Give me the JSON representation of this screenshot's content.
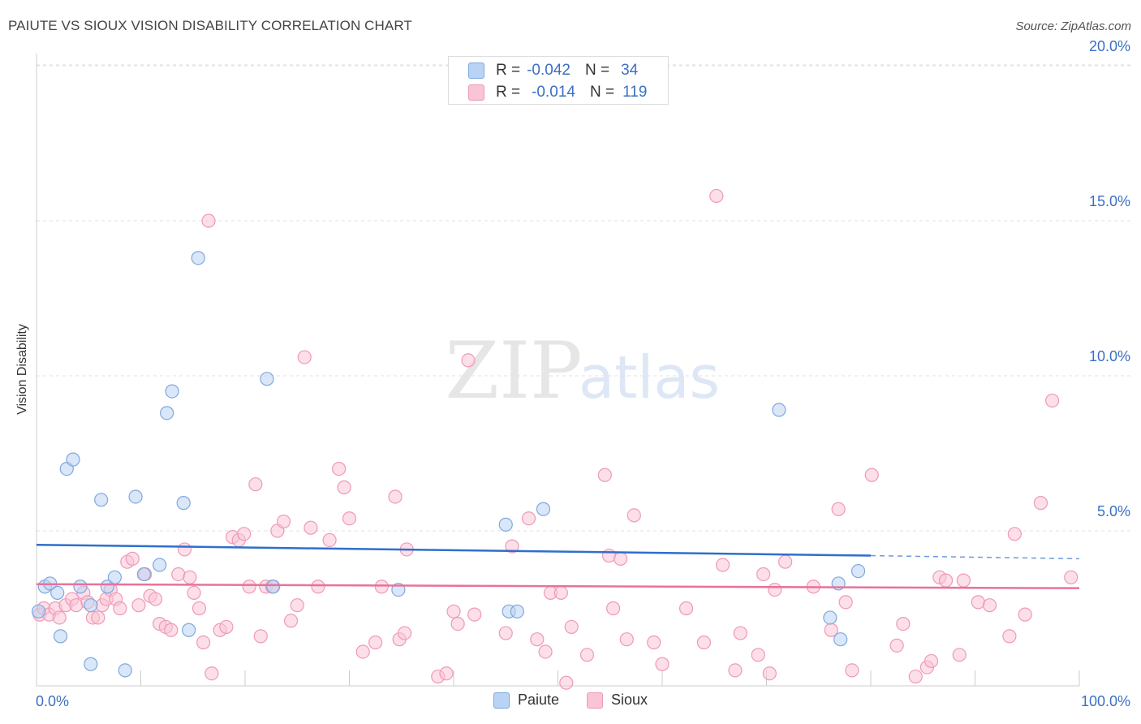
{
  "title": "PAIUTE VS SIOUX VISION DISABILITY CORRELATION CHART",
  "source": "Source: ZipAtlas.com",
  "watermark": {
    "zip": "ZIP",
    "atlas": "atlas"
  },
  "legend": {
    "rows": [
      {
        "r_label": "R =",
        "r_value": "-0.042",
        "n_label": "N =",
        "n_value": "34"
      },
      {
        "r_label": "R =",
        "r_value": "-0.014",
        "n_label": "N =",
        "n_value": "119"
      }
    ]
  },
  "colors": {
    "paiute_fill": "#b9d3f4",
    "paiute_stroke": "#7fa8dc",
    "paiute_line": "#2e6fcc",
    "sioux_fill": "#f9c4d5",
    "sioux_stroke": "#ee9ab5",
    "sioux_line": "#e8729b",
    "tick_label": "#3b6fc4",
    "grid": "#e2e2e2"
  },
  "chart_data": {
    "type": "scatter",
    "title": "PAIUTE VS SIOUX VISION DISABILITY CORRELATION CHART",
    "xlabel": "",
    "ylabel": "Vision Disability",
    "xlim": [
      0,
      100
    ],
    "ylim": [
      0,
      20.5
    ],
    "x_tick_labels": [
      "0.0%",
      "100.0%"
    ],
    "y_ticks": [
      5,
      10,
      15,
      20
    ],
    "y_tick_labels": [
      "5.0%",
      "10.0%",
      "15.0%",
      "20.0%"
    ],
    "grid": "horizontal dashed",
    "legend_placement": "top-center and bottom",
    "series": [
      {
        "name": "Paiute",
        "r": -0.042,
        "n": 34,
        "trend": {
          "x0": 0,
          "y0": 4.55,
          "x1": 80,
          "y1": 4.2,
          "dashed_to_x": 100,
          "dashed_to_y": 4.1
        },
        "points": [
          [
            0.2,
            2.4
          ],
          [
            0.8,
            3.2
          ],
          [
            1.3,
            3.3
          ],
          [
            2.0,
            3.0
          ],
          [
            2.3,
            1.6
          ],
          [
            2.9,
            7.0
          ],
          [
            3.5,
            7.3
          ],
          [
            4.2,
            3.2
          ],
          [
            5.2,
            0.7
          ],
          [
            5.2,
            2.6
          ],
          [
            6.2,
            6.0
          ],
          [
            6.8,
            3.2
          ],
          [
            7.5,
            3.5
          ],
          [
            8.5,
            0.5
          ],
          [
            9.5,
            6.1
          ],
          [
            10.3,
            3.6
          ],
          [
            11.8,
            3.9
          ],
          [
            12.5,
            8.8
          ],
          [
            13.0,
            9.5
          ],
          [
            14.1,
            5.9
          ],
          [
            14.6,
            1.8
          ],
          [
            15.5,
            13.8
          ],
          [
            22.1,
            9.9
          ],
          [
            22.7,
            3.2
          ],
          [
            34.7,
            3.1
          ],
          [
            45.0,
            5.2
          ],
          [
            45.3,
            2.4
          ],
          [
            46.1,
            2.4
          ],
          [
            48.6,
            5.7
          ],
          [
            71.2,
            8.9
          ],
          [
            77.1,
            1.5
          ],
          [
            76.1,
            2.2
          ],
          [
            76.9,
            3.3
          ],
          [
            78.8,
            3.7
          ]
        ]
      },
      {
        "name": "Sioux",
        "r": -0.014,
        "n": 119,
        "trend": {
          "x0": 0,
          "y0": 3.28,
          "x1": 100,
          "y1": 3.15
        },
        "points": [
          [
            0.3,
            2.3
          ],
          [
            0.7,
            2.5
          ],
          [
            1.2,
            2.3
          ],
          [
            1.8,
            2.5
          ],
          [
            2.2,
            2.2
          ],
          [
            2.8,
            2.6
          ],
          [
            3.4,
            2.8
          ],
          [
            3.8,
            2.6
          ],
          [
            4.5,
            3.0
          ],
          [
            4.9,
            2.7
          ],
          [
            5.4,
            2.2
          ],
          [
            5.9,
            2.2
          ],
          [
            6.3,
            2.6
          ],
          [
            6.7,
            2.8
          ],
          [
            7.1,
            3.1
          ],
          [
            7.6,
            2.8
          ],
          [
            8.0,
            2.5
          ],
          [
            8.7,
            4.0
          ],
          [
            9.2,
            4.1
          ],
          [
            9.8,
            2.6
          ],
          [
            10.4,
            3.6
          ],
          [
            10.9,
            2.9
          ],
          [
            11.4,
            2.8
          ],
          [
            11.8,
            2.0
          ],
          [
            12.4,
            1.9
          ],
          [
            12.9,
            1.8
          ],
          [
            13.6,
            3.6
          ],
          [
            14.2,
            4.4
          ],
          [
            14.7,
            3.5
          ],
          [
            15.1,
            3.0
          ],
          [
            15.6,
            2.5
          ],
          [
            16.0,
            1.4
          ],
          [
            16.5,
            15.0
          ],
          [
            16.8,
            0.4
          ],
          [
            17.6,
            1.8
          ],
          [
            18.2,
            1.9
          ],
          [
            18.8,
            4.8
          ],
          [
            19.4,
            4.7
          ],
          [
            19.9,
            4.9
          ],
          [
            20.4,
            3.2
          ],
          [
            21.0,
            6.5
          ],
          [
            21.5,
            1.6
          ],
          [
            22.0,
            3.2
          ],
          [
            22.6,
            3.2
          ],
          [
            23.1,
            5.0
          ],
          [
            23.7,
            5.3
          ],
          [
            24.4,
            2.1
          ],
          [
            25.0,
            2.6
          ],
          [
            25.7,
            10.6
          ],
          [
            26.3,
            5.1
          ],
          [
            27.0,
            3.2
          ],
          [
            28.1,
            4.7
          ],
          [
            29.0,
            7.0
          ],
          [
            29.5,
            6.4
          ],
          [
            30.0,
            5.4
          ],
          [
            31.3,
            1.1
          ],
          [
            32.5,
            1.4
          ],
          [
            33.1,
            3.2
          ],
          [
            34.4,
            6.1
          ],
          [
            34.8,
            1.5
          ],
          [
            35.3,
            1.7
          ],
          [
            35.5,
            4.4
          ],
          [
            38.5,
            0.3
          ],
          [
            39.3,
            0.4
          ],
          [
            40.0,
            2.4
          ],
          [
            40.4,
            2.0
          ],
          [
            41.4,
            10.5
          ],
          [
            42.0,
            2.3
          ],
          [
            45.0,
            1.7
          ],
          [
            45.6,
            4.5
          ],
          [
            47.2,
            5.4
          ],
          [
            48.0,
            1.5
          ],
          [
            48.8,
            1.1
          ],
          [
            49.3,
            3.0
          ],
          [
            50.3,
            3.0
          ],
          [
            50.8,
            0.1
          ],
          [
            51.3,
            1.9
          ],
          [
            52.8,
            1.0
          ],
          [
            54.5,
            6.8
          ],
          [
            54.9,
            4.2
          ],
          [
            55.3,
            2.5
          ],
          [
            56.0,
            4.1
          ],
          [
            56.6,
            1.5
          ],
          [
            57.3,
            5.5
          ],
          [
            59.2,
            1.4
          ],
          [
            60.0,
            0.7
          ],
          [
            62.3,
            2.5
          ],
          [
            64.0,
            1.4
          ],
          [
            65.2,
            15.8
          ],
          [
            65.8,
            3.9
          ],
          [
            67.0,
            0.5
          ],
          [
            67.5,
            1.7
          ],
          [
            69.2,
            1.0
          ],
          [
            69.7,
            3.6
          ],
          [
            70.3,
            0.4
          ],
          [
            70.8,
            3.1
          ],
          [
            71.8,
            4.0
          ],
          [
            74.5,
            3.2
          ],
          [
            76.2,
            1.8
          ],
          [
            76.9,
            5.7
          ],
          [
            77.6,
            2.7
          ],
          [
            78.2,
            0.5
          ],
          [
            80.1,
            6.8
          ],
          [
            82.5,
            1.3
          ],
          [
            83.1,
            2.0
          ],
          [
            84.3,
            0.3
          ],
          [
            85.4,
            0.6
          ],
          [
            85.8,
            0.8
          ],
          [
            86.6,
            3.5
          ],
          [
            87.2,
            3.4
          ],
          [
            88.5,
            1.0
          ],
          [
            88.9,
            3.4
          ],
          [
            90.3,
            2.7
          ],
          [
            91.4,
            2.6
          ],
          [
            93.8,
            4.9
          ],
          [
            93.3,
            1.6
          ],
          [
            94.8,
            2.3
          ],
          [
            96.3,
            5.9
          ],
          [
            97.4,
            9.2
          ],
          [
            99.2,
            3.5
          ]
        ]
      }
    ]
  },
  "bottom_legend": [
    "Paiute",
    "Sioux"
  ]
}
